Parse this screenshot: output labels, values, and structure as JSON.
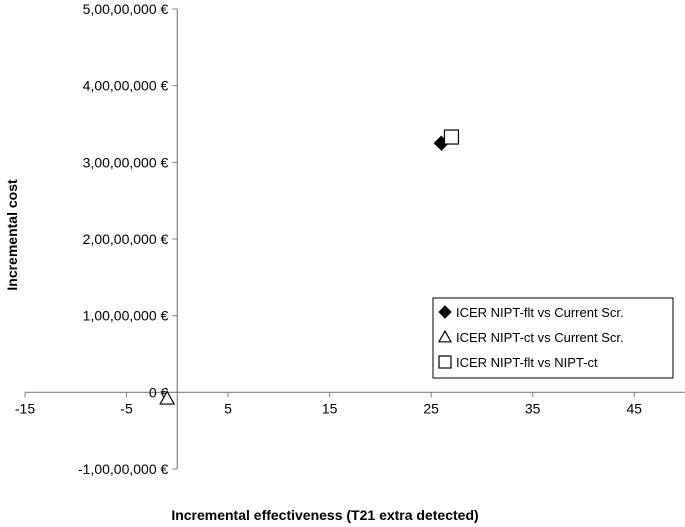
{
  "chart_data": {
    "type": "scatter",
    "title": "",
    "xlabel": "Incremental effectiveness (T21 extra detected)",
    "ylabel": "Incremental cost",
    "xlim": [
      -15,
      50
    ],
    "ylim": [
      -10000000,
      50000000
    ],
    "x_ticks": [
      -15,
      -5,
      5,
      15,
      25,
      35,
      45
    ],
    "x_tick_labels": [
      "-15",
      "-5",
      "5",
      "15",
      "25",
      "35",
      "45"
    ],
    "y_ticks": [
      -10000000,
      0,
      10000000,
      20000000,
      30000000,
      40000000,
      50000000
    ],
    "y_tick_labels": [
      "-1,00,00,000 €",
      "0 €",
      "1,00,00,000 €",
      "2,00,00,000 €",
      "3,00,00,000 €",
      "4,00,00,000 €",
      "5,00,00,000 €"
    ],
    "grid": false,
    "legend_position": "bottom-right",
    "series": [
      {
        "name": "ICER NIPT-flt vs Current Scr.",
        "marker": "diamond-filled",
        "color": "#000000",
        "x": [
          26
        ],
        "y": [
          32500000
        ]
      },
      {
        "name": "ICER NIPT-ct vs Current Scr.",
        "marker": "triangle-open",
        "color": "#000000",
        "x": [
          -1
        ],
        "y": [
          -800000
        ]
      },
      {
        "name": "ICER NIPT-flt vs NIPT-ct",
        "marker": "square-open",
        "color": "#000000",
        "x": [
          27
        ],
        "y": [
          33300000
        ]
      }
    ]
  }
}
